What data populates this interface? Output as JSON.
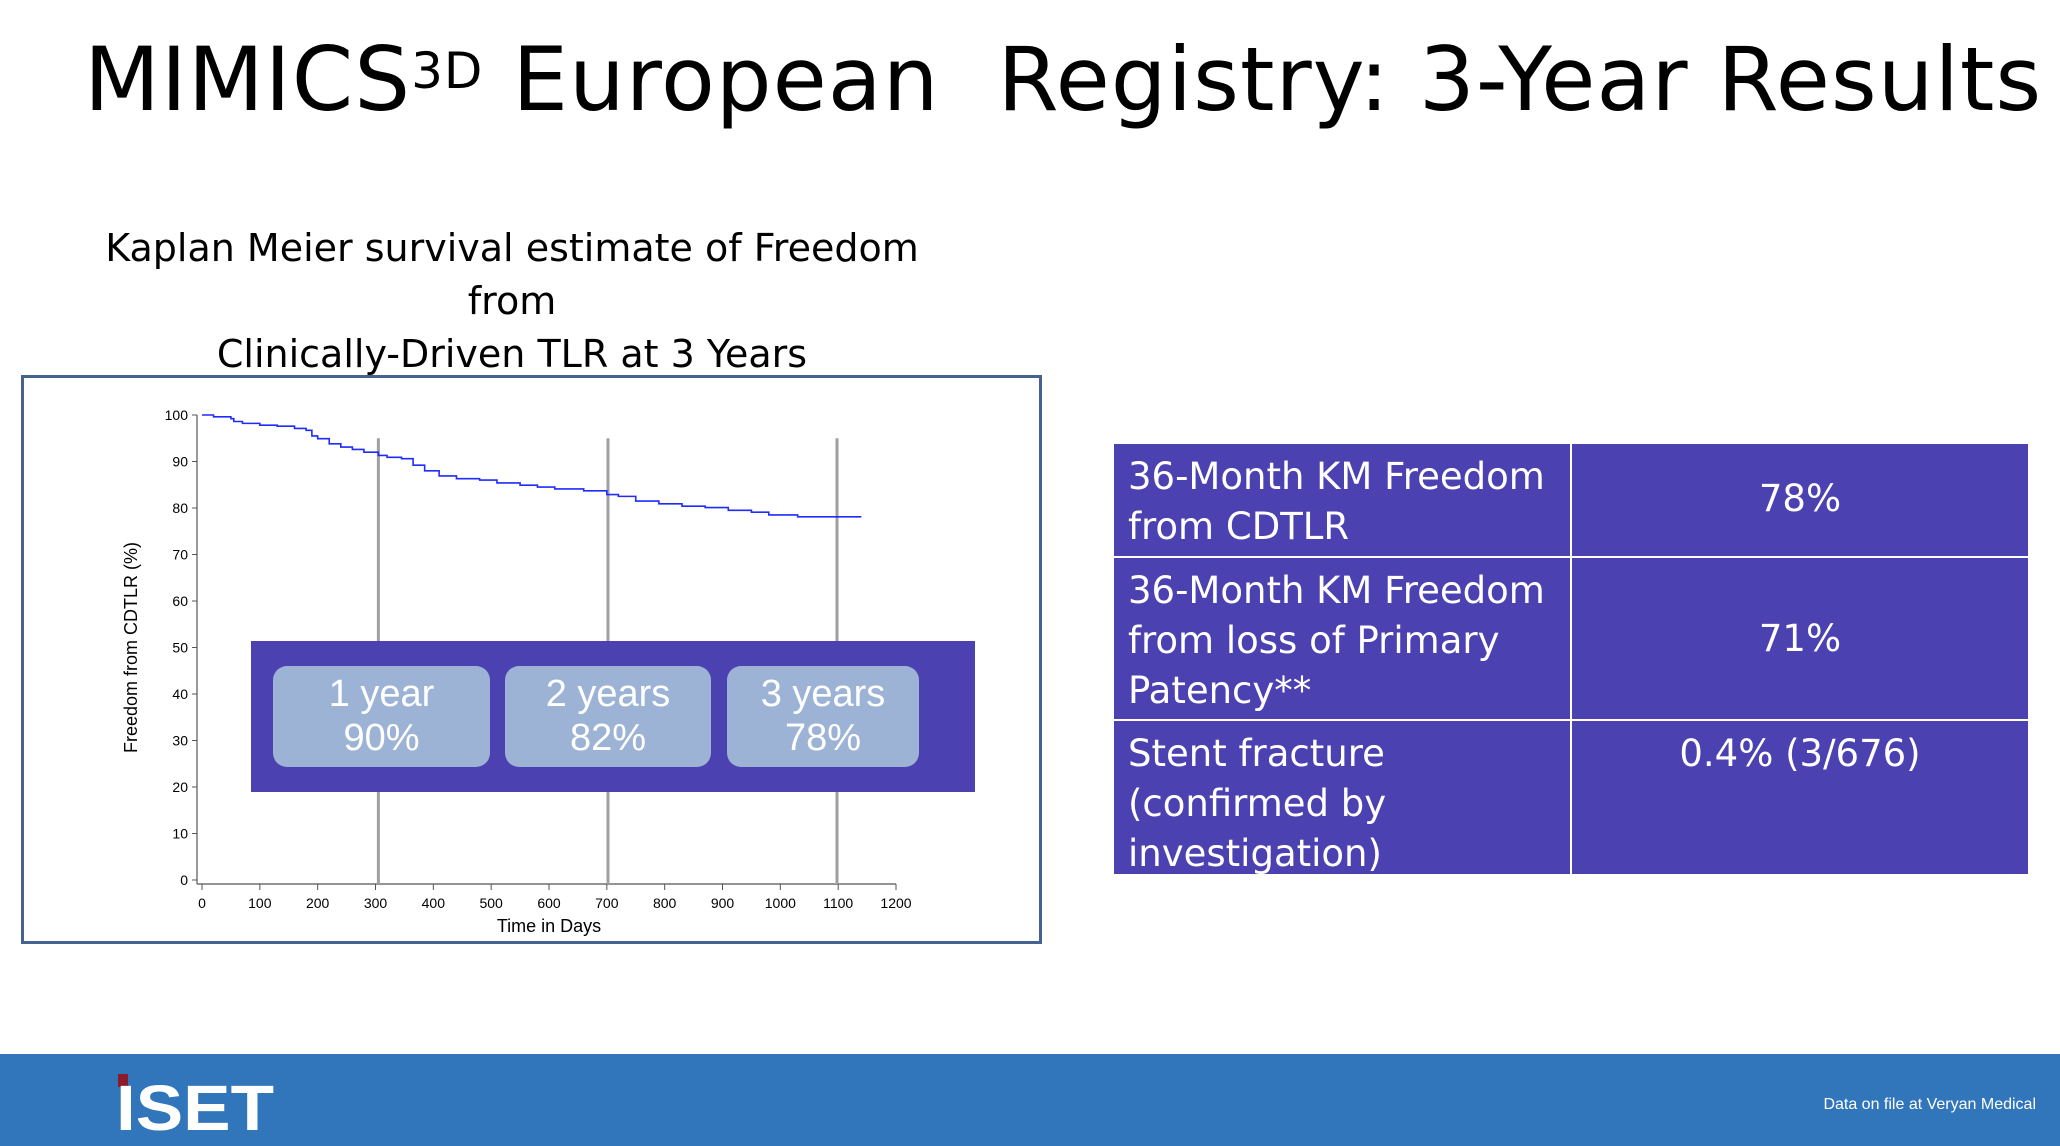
{
  "slide": {
    "title_main": "MIMICS",
    "title_sup": "3D",
    "title_rest": " European  Registry: 3-Year Results",
    "subtitle_line1": "Kaplan Meier survival estimate of Freedom from",
    "subtitle_line2": "Clinically-Driven TLR at 3 Years"
  },
  "chart_data": {
    "type": "line",
    "step": true,
    "xlabel": "Time in Days",
    "ylabel": "Freedom from CDTLR (%)",
    "xlim": [
      0,
      1200
    ],
    "ylim": [
      0,
      100
    ],
    "xticks": [
      0,
      100,
      200,
      300,
      400,
      500,
      600,
      700,
      800,
      900,
      1000,
      1100,
      1200
    ],
    "yticks": [
      0,
      10,
      20,
      30,
      40,
      50,
      60,
      70,
      80,
      90,
      100
    ],
    "line_color": "#1f2bff",
    "reference_lines_days": [
      305,
      702,
      1098
    ],
    "x": [
      0,
      20,
      50,
      55,
      70,
      100,
      130,
      160,
      180,
      190,
      200,
      220,
      240,
      260,
      280,
      305,
      320,
      345,
      365,
      385,
      410,
      440,
      480,
      510,
      550,
      580,
      610,
      660,
      700,
      720,
      750,
      790,
      830,
      870,
      910,
      950,
      980,
      1030,
      1140
    ],
    "y": [
      100,
      99.6,
      99.2,
      98.6,
      98.2,
      97.8,
      97.6,
      97.1,
      96.7,
      95.5,
      94.9,
      93.8,
      93.1,
      92.6,
      92.0,
      91.3,
      90.9,
      90.6,
      89.2,
      88.0,
      86.9,
      86.3,
      86.0,
      85.4,
      84.9,
      84.5,
      84.1,
      83.7,
      82.9,
      82.5,
      81.5,
      80.9,
      80.4,
      80.1,
      79.5,
      79.1,
      78.5,
      78.1,
      78.1
    ],
    "annotations": [
      {
        "label": "1 year",
        "value": "90%"
      },
      {
        "label": "2 years",
        "value": "82%"
      },
      {
        "label": "3 years",
        "value": "78%"
      }
    ]
  },
  "table": {
    "rows": [
      {
        "label": "36-Month KM Freedom from CDTLR",
        "value": "78%"
      },
      {
        "label": "36-Month KM Freedom from loss of Primary Patency**",
        "value": "71%"
      },
      {
        "label": "Stent fracture (confirmed by investigation)",
        "value": "0.4%  (3/676)"
      }
    ]
  },
  "footer": {
    "logo_text": "iSET",
    "note": "Data on file at Veryan Medical"
  },
  "colors": {
    "accent_purple": "#4b41b0",
    "tile": "#9db3d6",
    "footer_blue": "#3176bb",
    "logo_red": "#8b1a2b"
  }
}
